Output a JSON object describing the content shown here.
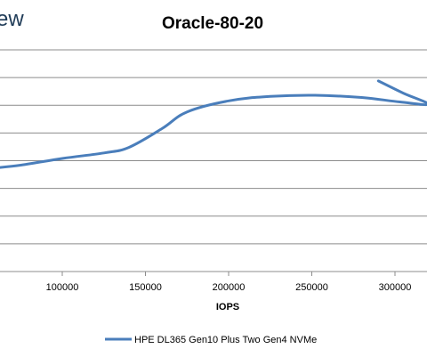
{
  "brand_fragment": "ew",
  "chart_data": {
    "type": "line",
    "title": "Oracle-80-20",
    "xlabel": "IOPS",
    "ylabel": "",
    "x_ticks": [
      "100000",
      "150000",
      "200000",
      "250000",
      "300000"
    ],
    "xlim": [
      50000,
      320000
    ],
    "y_gridlines": 9,
    "grid": true,
    "legend_position": "bottom",
    "series": [
      {
        "name": "HPE DL365 Gen10 Plus Two Gen4 NVMe",
        "color": "#4a7ebb",
        "points": [
          [
            50000,
            0.46
          ],
          [
            75000,
            0.48
          ],
          [
            100000,
            0.51
          ],
          [
            125000,
            0.535
          ],
          [
            140000,
            0.56
          ],
          [
            160000,
            0.645
          ],
          [
            175000,
            0.72
          ],
          [
            200000,
            0.77
          ],
          [
            225000,
            0.79
          ],
          [
            252000,
            0.795
          ],
          [
            280000,
            0.785
          ],
          [
            303000,
            0.765
          ],
          [
            320000,
            0.755
          ],
          [
            305000,
            0.805
          ],
          [
            290000,
            0.86
          ]
        ]
      }
    ]
  }
}
